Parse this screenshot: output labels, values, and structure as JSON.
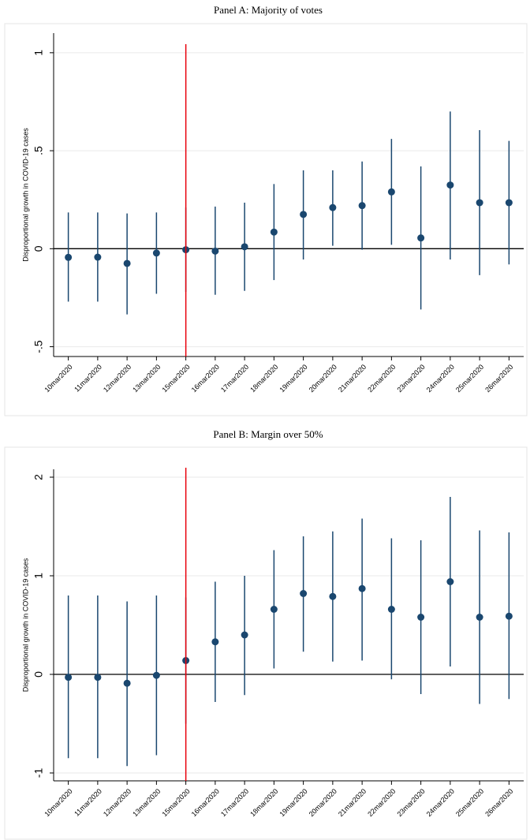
{
  "chart_data": [
    {
      "type": "errorbar",
      "title": "Panel A: Majority of votes",
      "y_label": "Disproportional growth in COVID-19 cases",
      "categories": [
        "10mar2020",
        "11mar2020",
        "12mar2020",
        "13mar2020",
        "15mar2020",
        "16mar2020",
        "17mar2020",
        "18mar2020",
        "19mar2020",
        "20mar2020",
        "21mar2020",
        "22mar2020",
        "23mar2020",
        "24mar2020",
        "25mar2020",
        "26mar2020"
      ],
      "series": [
        {
          "color": "#1a476f",
          "values": [
            -0.044,
            -0.043,
            -0.075,
            -0.022,
            -0.005,
            -0.012,
            0.01,
            0.085,
            0.175,
            0.21,
            0.22,
            0.29,
            0.055,
            0.325,
            0.235,
            0.235
          ],
          "lower": [
            -0.27,
            -0.27,
            -0.335,
            -0.23,
            -0.22,
            -0.235,
            -0.215,
            -0.16,
            -0.055,
            0.015,
            -0.005,
            0.02,
            -0.31,
            -0.055,
            -0.135,
            -0.08
          ],
          "upper": [
            0.185,
            0.185,
            0.18,
            0.185,
            0.21,
            0.215,
            0.235,
            0.33,
            0.4,
            0.4,
            0.445,
            0.56,
            0.42,
            0.7,
            0.605,
            0.55
          ]
        }
      ],
      "ylim": [
        -0.55,
        1.1
      ],
      "yticks": [
        {
          "value": -0.5,
          "label": "-.5"
        },
        0,
        {
          "value": 0.5,
          "label": ".5"
        },
        1
      ],
      "grid": true,
      "hline": 0,
      "hline_color": "#000000",
      "vline": "15mar2020",
      "vline_color": "#e8000b"
    },
    {
      "type": "errorbar",
      "title": "Panel B: Margin over 50%",
      "y_label": "Disproportional growth in COVID-19 cases",
      "categories": [
        "10mar2020",
        "11mar2020",
        "12mar2020",
        "13mar2020",
        "15mar2020",
        "16mar2020",
        "17mar2020",
        "18mar2020",
        "19mar2020",
        "20mar2020",
        "21mar2020",
        "22mar2020",
        "23mar2020",
        "24mar2020",
        "25mar2020",
        "26mar2020"
      ],
      "series": [
        {
          "color": "#1a476f",
          "values": [
            -0.03,
            -0.03,
            -0.09,
            -0.01,
            0.14,
            0.33,
            0.4,
            0.66,
            0.82,
            0.79,
            0.87,
            0.66,
            0.58,
            0.94,
            0.58,
            0.59
          ],
          "lower": [
            -0.85,
            -0.85,
            -0.93,
            -0.82,
            -0.5,
            -0.28,
            -0.21,
            0.06,
            0.23,
            0.13,
            0.14,
            -0.05,
            -0.2,
            0.08,
            -0.3,
            -0.25
          ],
          "upper": [
            0.8,
            0.8,
            0.74,
            0.8,
            0.78,
            0.94,
            1.0,
            1.26,
            1.4,
            1.45,
            1.58,
            1.38,
            1.36,
            1.8,
            1.46,
            1.44
          ]
        }
      ],
      "ylim": [
        -1.08,
        2.08
      ],
      "yticks": [
        -1,
        0,
        1,
        2
      ],
      "grid": true,
      "hline": 0,
      "hline_color": "#000000",
      "vline": "15mar2020",
      "vline_color": "#e8000b"
    }
  ]
}
